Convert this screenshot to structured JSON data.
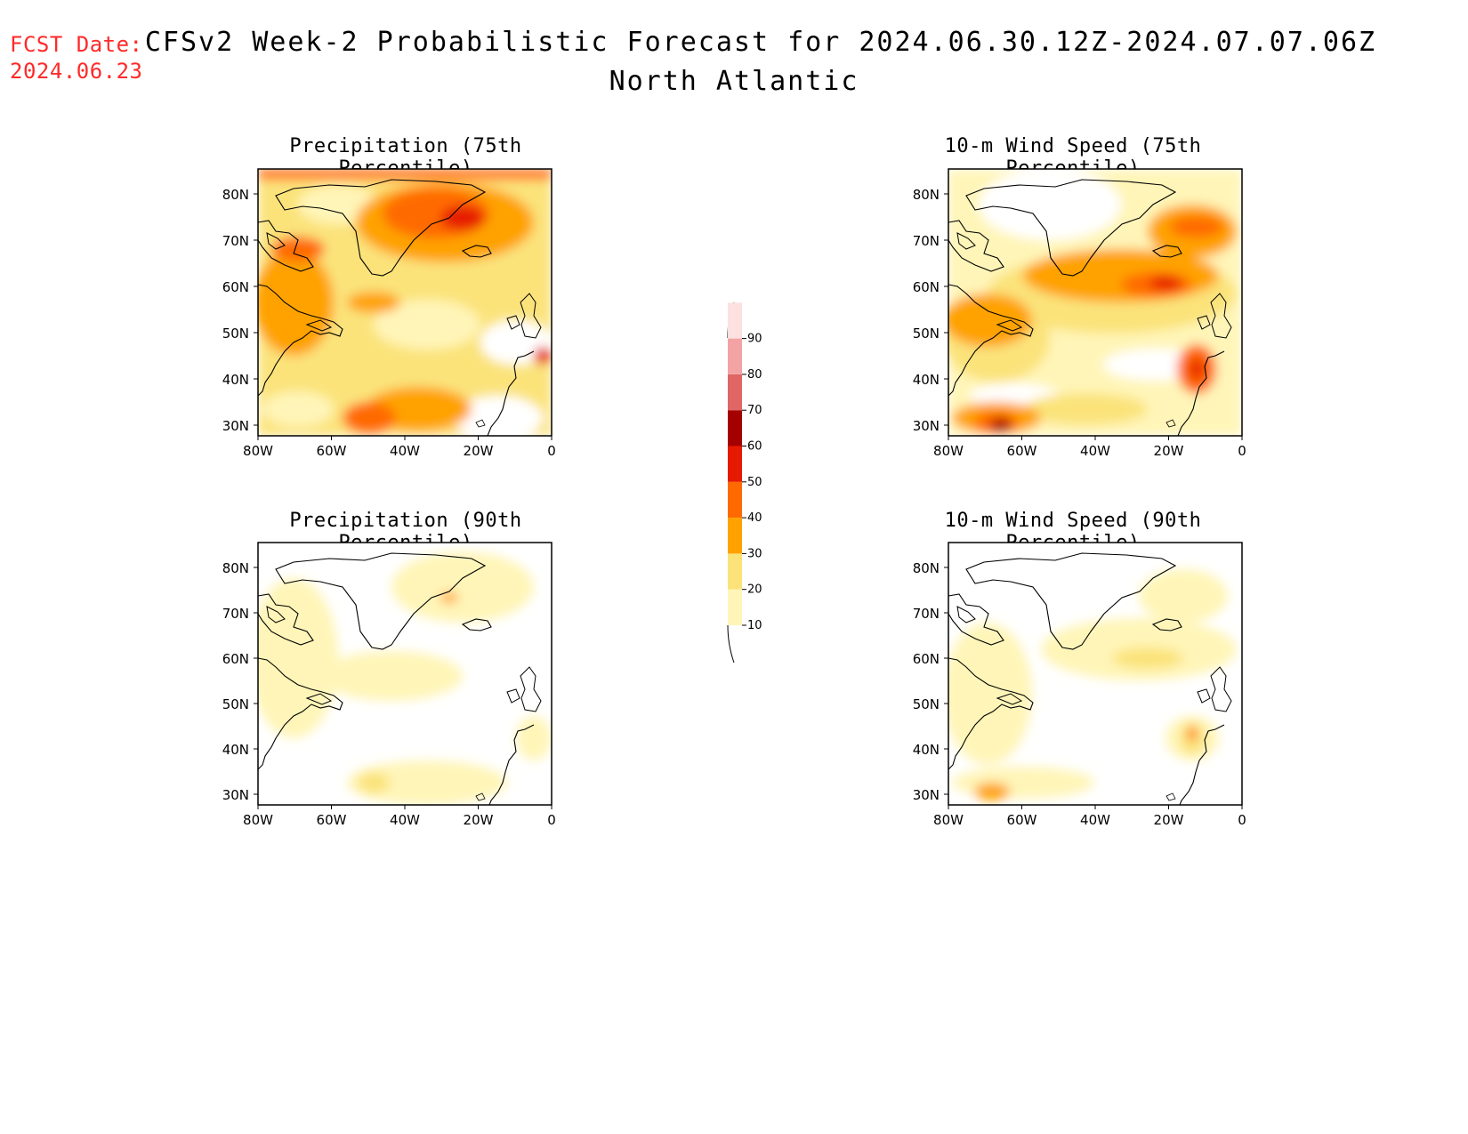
{
  "header": {
    "fcst_label": "FCST Date:",
    "fcst_date": "2024.06.23",
    "title": "CFSv2 Week-2 Probabilistic Forecast for 2024.06.30.12Z-2024.07.07.06Z",
    "subtitle": "North Atlantic"
  },
  "panels": [
    {
      "title": "Precipitation (75th Percentile)"
    },
    {
      "title": "10-m Wind Speed (75th Percentile)"
    },
    {
      "title": "Precipitation (90th Percentile)"
    },
    {
      "title": "10-m Wind Speed (90th Percentile)"
    }
  ],
  "axes": {
    "lat_labels": [
      "80N",
      "70N",
      "60N",
      "50N",
      "40N",
      "30N"
    ],
    "lon_labels": [
      "80W",
      "60W",
      "40W",
      "20W",
      "0"
    ]
  },
  "colorbar": {
    "levels": [
      "10",
      "20",
      "30",
      "40",
      "50",
      "60",
      "70",
      "80",
      "90"
    ],
    "colors": [
      "#fff5b8",
      "#fbe37a",
      "#ffa200",
      "#ff6a00",
      "#e61a00",
      "#a50000",
      "#e06666",
      "#f3a3a3",
      "#fde0e0"
    ]
  }
}
